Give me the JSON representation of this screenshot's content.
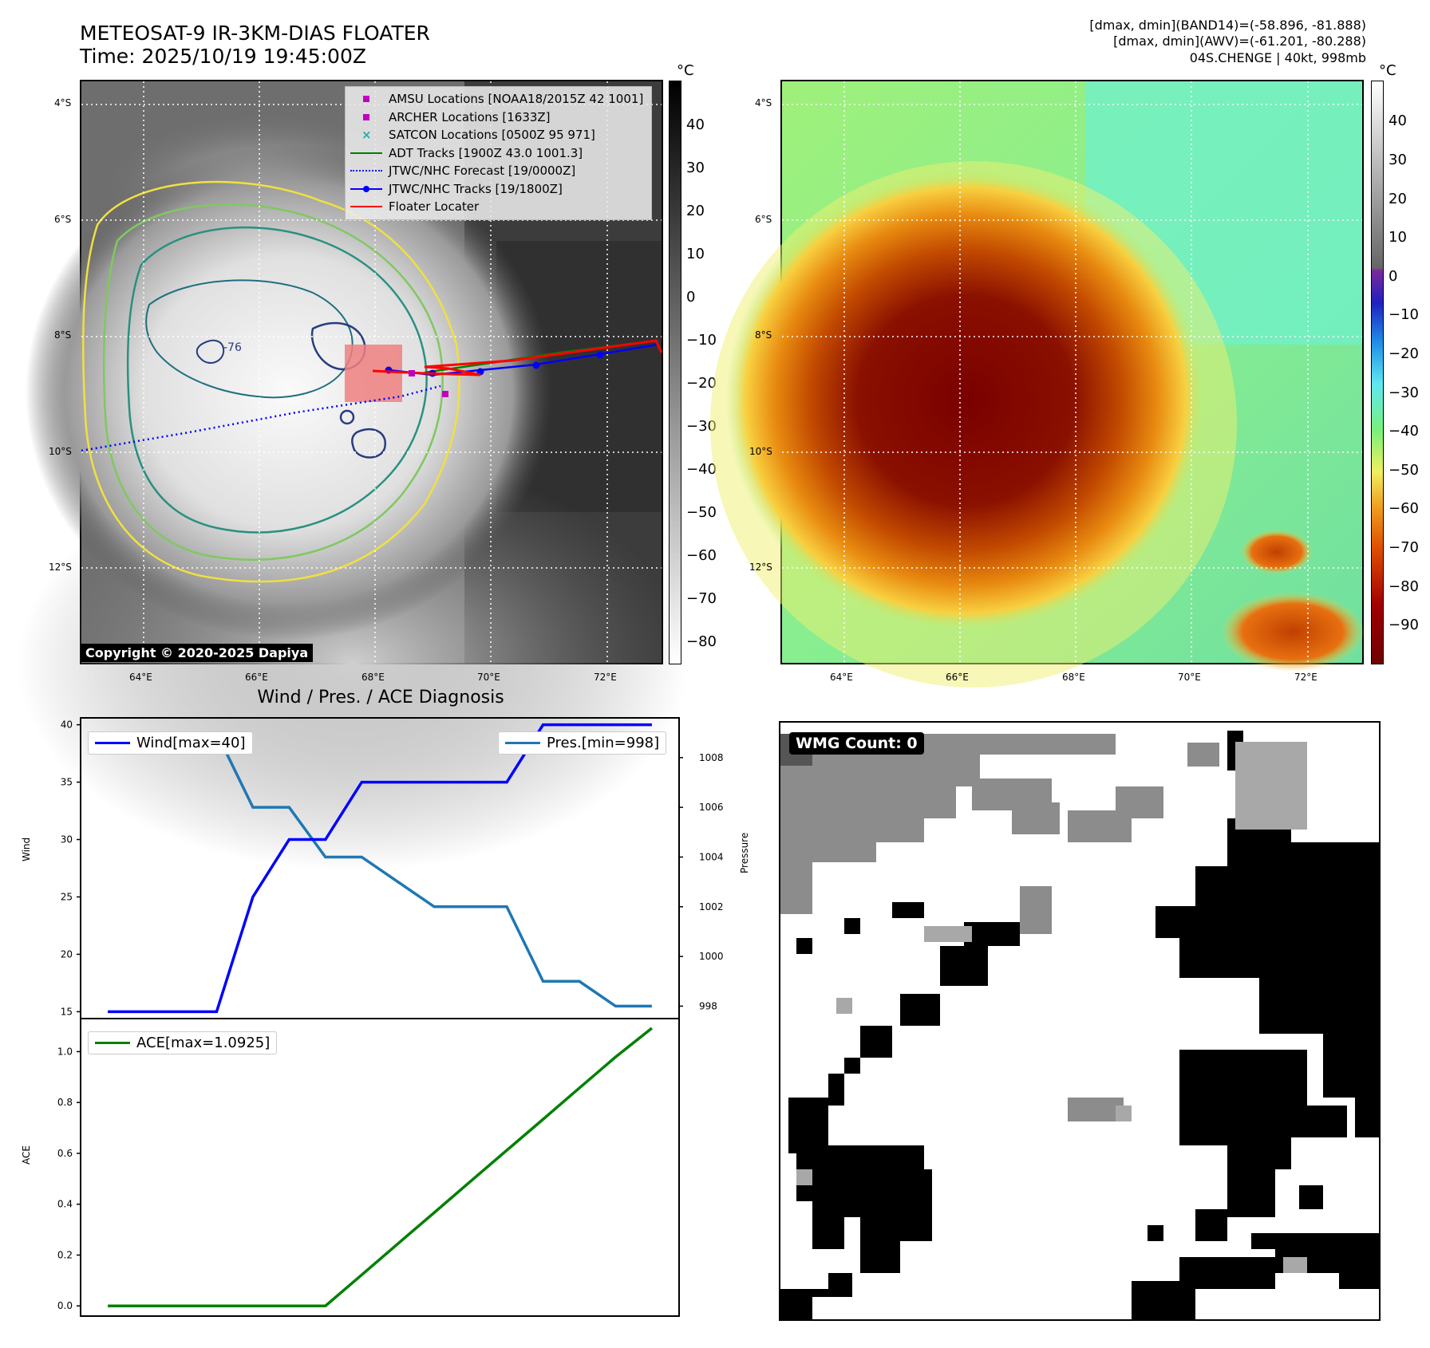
{
  "header": {
    "title_line1": "METEOSAT-9 IR-3KM-DIAS FLOATER",
    "title_line2": "Time: 2025/10/19 19:45:00Z",
    "info_line1": "[dmax, dmin](BAND14)=(-58.896, -81.888)",
    "info_line2": "[dmax, dmin](AWV)=(-61.201, -80.288)",
    "info_line3": "04S.CHENGE | 40kt, 998mb"
  },
  "map_axes": {
    "lat_labels": [
      "4°S",
      "6°S",
      "8°S",
      "10°S",
      "12°S"
    ],
    "lon_labels": [
      "64°E",
      "66°E",
      "68°E",
      "70°E",
      "72°E"
    ]
  },
  "ir_panel": {
    "colorbar_unit": "°C",
    "colorbar_ticks": [
      "40",
      "30",
      "20",
      "10",
      "0",
      "−10",
      "−20",
      "−30",
      "−40",
      "−50",
      "−60",
      "−70",
      "−80"
    ],
    "legend": [
      {
        "label": "AMSU Locations [NOAA18/2015Z 42 1001]",
        "icon": "square-marker",
        "color": "#c000c0"
      },
      {
        "label": "ARCHER Locations [1633Z]",
        "icon": "square-marker",
        "color": "#c000c0"
      },
      {
        "label": "SATCON Locations [0500Z 95 971]",
        "icon": "x-marker",
        "color": "#20b0b0"
      },
      {
        "label": "ADT Tracks [1900Z 43.0 1001.3]",
        "icon": "solid-line",
        "color": "#008000"
      },
      {
        "label": "JTWC/NHC Forecast [19/0000Z]",
        "icon": "dotted-line",
        "color": "#0000ff"
      },
      {
        "label": "JTWC/NHC Tracks [19/1800Z]",
        "icon": "line-dot",
        "color": "#0000ff"
      },
      {
        "label": "Floater Locater",
        "icon": "solid-line",
        "color": "#ff0000"
      }
    ],
    "contour_label": "-76",
    "copyright": "Copyright © 2020-2025 Dapiya"
  },
  "awv_panel": {
    "colorbar_unit": "°C",
    "colorbar_ticks": [
      "40",
      "30",
      "20",
      "10",
      "0",
      "−10",
      "−20",
      "−30",
      "−40",
      "−50",
      "−60",
      "−70",
      "−80",
      "−90"
    ]
  },
  "diagnosis": {
    "title": "Wind / Pres. / ACE Diagnosis",
    "wind_label": "Wind",
    "pressure_label": "Pressure",
    "ace_label": "ACE",
    "wind_legend": "Wind[max=40]",
    "pres_legend": "Pres.[min=998]",
    "ace_legend": "ACE[max=1.0925]"
  },
  "wmg": {
    "label": "WMG Count: 0"
  },
  "chart_data": [
    {
      "type": "line",
      "title": "Wind / Pres. / ACE Diagnosis",
      "x": [
        0,
        1,
        2,
        3,
        4,
        5,
        6,
        7,
        8,
        9,
        10,
        11,
        12,
        13,
        14,
        15
      ],
      "series": [
        {
          "name": "Wind[max=40]",
          "axis": "left",
          "color": "#0000ff",
          "values": [
            15,
            15,
            15,
            15,
            25,
            30,
            30,
            35,
            35,
            35,
            35,
            35,
            40,
            40,
            40,
            40
          ]
        },
        {
          "name": "Pres.[min=998]",
          "axis": "right",
          "color": "#1f77b4",
          "values": [
            1009,
            1009,
            1009,
            1009,
            1006,
            1006,
            1004,
            1004,
            1003,
            1002,
            1002,
            1002,
            999,
            999,
            998,
            998
          ]
        }
      ],
      "ylabel": "Wind",
      "y2label": "Pressure",
      "ylim": [
        14.4,
        40.6
      ],
      "yticks": [
        15,
        20,
        25,
        30,
        35,
        40
      ],
      "y2lim": [
        997.5,
        1009.6
      ],
      "y2ticks": [
        998,
        1000,
        1002,
        1004,
        1006,
        1008
      ]
    },
    {
      "type": "line",
      "x": [
        0,
        1,
        2,
        3,
        4,
        5,
        6,
        7,
        8,
        9,
        10,
        11,
        12,
        13,
        14,
        15
      ],
      "series": [
        {
          "name": "ACE[max=1.0925]",
          "color": "#008000",
          "values": [
            0,
            0,
            0,
            0,
            0,
            0,
            0,
            0.122,
            0.245,
            0.367,
            0.49,
            0.612,
            0.734,
            0.857,
            0.979,
            1.0925
          ]
        }
      ],
      "ylabel": "ACE",
      "ylim": [
        -0.04,
        1.13
      ],
      "yticks": [
        0.0,
        0.2,
        0.4,
        0.6,
        0.8,
        1.0
      ]
    }
  ]
}
